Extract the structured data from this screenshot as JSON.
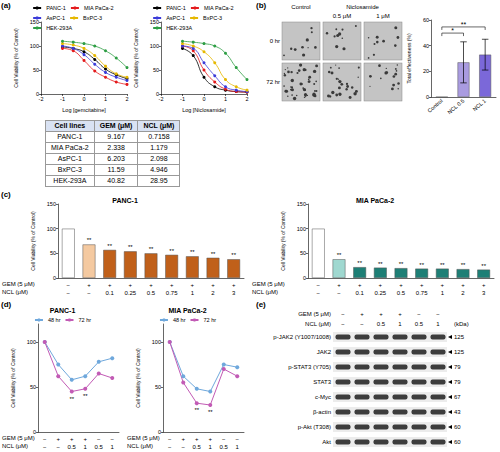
{
  "panel_labels": [
    "(a)",
    "(b)",
    "(c)",
    "(d)",
    "(e)"
  ],
  "chart_data": [
    {
      "type": "line",
      "x_label": "Log [gemcitabine]",
      "y_label": "Cell Viability (% of Control)",
      "x": [
        -1,
        -0.5,
        0,
        0.5,
        1,
        1.5,
        2
      ],
      "series": [
        {
          "name": "PANC-1",
          "color": "#000000",
          "values": [
            98,
            95,
            88,
            72,
            52,
            40,
            32
          ]
        },
        {
          "name": "MIA PaCa-2",
          "color": "#e41a1c",
          "values": [
            95,
            90,
            70,
            48,
            35,
            25,
            20
          ]
        },
        {
          "name": "AsPC-1",
          "color": "#3b3bd9",
          "values": [
            100,
            95,
            82,
            62,
            45,
            35,
            28
          ]
        },
        {
          "name": "BxPC-3",
          "color": "#e6b800",
          "values": [
            105,
            102,
            95,
            80,
            58,
            42,
            35
          ]
        },
        {
          "name": "HEK-293A",
          "color": "#2e9e44",
          "values": [
            110,
            108,
            105,
            100,
            90,
            75,
            55
          ]
        }
      ],
      "xlim": [
        -2,
        2
      ],
      "xticks": [
        -2,
        -1,
        0,
        1,
        2
      ],
      "ylim": [
        0,
        150
      ],
      "yticks": [
        0,
        50,
        100,
        150
      ],
      "marker": "circle",
      "line_style": "solid",
      "legend": "top",
      "grid": false
    },
    {
      "type": "line",
      "x_label": "Log [Niclosamide]",
      "y_label": "Cell Viability (% of Control)",
      "x": [
        -1,
        -0.5,
        0,
        0.5,
        1,
        1.5,
        2
      ],
      "series": [
        {
          "name": "PANC-1",
          "color": "#000000",
          "values": [
            95,
            80,
            35,
            15,
            8,
            5,
            4
          ]
        },
        {
          "name": "MIA PaCa-2",
          "color": "#e41a1c",
          "values": [
            100,
            90,
            50,
            25,
            10,
            5,
            4
          ]
        },
        {
          "name": "AsPC-1",
          "color": "#3b3bd9",
          "values": [
            100,
            95,
            65,
            38,
            15,
            8,
            5
          ]
        },
        {
          "name": "BxPC-3",
          "color": "#e6b800",
          "values": [
            105,
            100,
            88,
            65,
            30,
            15,
            8
          ]
        },
        {
          "name": "HEK-293A",
          "color": "#2e9e44",
          "values": [
            110,
            108,
            105,
            100,
            85,
            55,
            30
          ]
        }
      ],
      "xlim": [
        -2,
        2
      ],
      "xticks": [
        -2,
        -1,
        0,
        1,
        2
      ],
      "ylim": [
        0,
        150
      ],
      "yticks": [
        0,
        50,
        100,
        150
      ],
      "marker": "circle",
      "line_style": "solid",
      "legend": "top",
      "grid": false
    },
    {
      "type": "bar",
      "y_label": "Total effectiveness (%)",
      "categories": [
        "Control",
        "NCL 0.5",
        "NCL 1"
      ],
      "values": [
        0,
        27,
        33
      ],
      "errors": [
        0,
        16,
        12
      ],
      "colors": [
        "#d9d9f3",
        "#a99be0",
        "#7b68d9"
      ],
      "significance": [
        {
          "text": "*",
          "from": 0,
          "to": 1
        },
        {
          "text": "**",
          "from": 0,
          "to": 2
        }
      ],
      "ylim": [
        0,
        60
      ],
      "yticks": [
        0,
        20,
        40,
        60
      ],
      "grid": false
    },
    {
      "type": "bar",
      "title": "PANC-1",
      "y_label": "Cell Viability (% of Control)",
      "x_rows": [
        {
          "label": "GEM (5 μM)",
          "values": [
            "−",
            "+",
            "+",
            "+",
            "+",
            "+",
            "+",
            "+",
            "+"
          ]
        },
        {
          "label": "NCL (μM)",
          "values": [
            "−",
            "−",
            "0.1",
            "0.25",
            "0.5",
            "0.75",
            "1",
            "2",
            "3"
          ]
        }
      ],
      "values": [
        100,
        68,
        57,
        54,
        50,
        47,
        44,
        41,
        38
      ],
      "colors": [
        "#ffffff",
        "#f4c9a0",
        "#c0601a",
        "#c0601a",
        "#c0601a",
        "#c0601a",
        "#c0601a",
        "#c0601a",
        "#c0601a"
      ],
      "marks": [
        null,
        "**",
        "**",
        "**",
        "**",
        "**",
        "**",
        "**",
        "**"
      ],
      "ylim": [
        0,
        150
      ],
      "yticks": [
        0,
        50,
        100,
        150
      ],
      "grid": false
    },
    {
      "type": "bar",
      "title": "MIA PaCa-2",
      "y_label": "Cell Viability (% of Control)",
      "x_rows": [
        {
          "label": "GEM (5 μM)",
          "values": [
            "−",
            "+",
            "+",
            "+",
            "+",
            "+",
            "+",
            "+",
            "+"
          ]
        },
        {
          "label": "NCL (μM)",
          "values": [
            "−",
            "−",
            "0.1",
            "0.25",
            "0.5",
            "0.75",
            "1",
            "2",
            "3"
          ]
        }
      ],
      "values": [
        100,
        38,
        22,
        21,
        20,
        19,
        19,
        18,
        17
      ],
      "colors": [
        "#ffffff",
        "#9fd8d0",
        "#1e7f76",
        "#1e7f76",
        "#1e7f76",
        "#1e7f76",
        "#1e7f76",
        "#1e7f76",
        "#1e7f76"
      ],
      "marks": [
        null,
        "**",
        "**",
        "**",
        "**",
        "**",
        "**",
        "**",
        "**"
      ],
      "ylim": [
        0,
        150
      ],
      "yticks": [
        0,
        50,
        100,
        150
      ],
      "grid": false
    },
    {
      "type": "line",
      "title": "PANC-1",
      "y_label": "Cell Viability (% of Control)",
      "x_rows": [
        {
          "label": "GEM (5 μM)",
          "values": [
            "−",
            "+",
            "+",
            "+",
            "−",
            "−"
          ]
        },
        {
          "label": "NCL (μM)",
          "values": [
            "−",
            "−",
            "0.5",
            "1",
            "0.5",
            "1"
          ]
        }
      ],
      "series": [
        {
          "name": "48 hr",
          "color": "#6fa8dc",
          "values": [
            100,
            75,
            58,
            62,
            78,
            82
          ]
        },
        {
          "name": "72 hr",
          "color": "#c25bb5",
          "values": [
            100,
            62,
            45,
            48,
            65,
            60
          ],
          "marks": [
            null,
            null,
            "**",
            "**",
            null,
            null
          ]
        }
      ],
      "ylim": [
        0,
        120
      ],
      "yticks": [
        0,
        50,
        100
      ],
      "marker": "circle",
      "line_style": "solid",
      "legend": "top",
      "grid": false
    },
    {
      "type": "line",
      "title": "MIA PaCa-2",
      "y_label": "Cell Viability (% of Control)",
      "x_rows": [
        {
          "label": "GEM (5 μM)",
          "values": [
            "−",
            "+",
            "+",
            "+",
            "−",
            "−"
          ]
        },
        {
          "label": "NCL (μM)",
          "values": [
            "−",
            "−",
            "0.5",
            "1",
            "0.5",
            "1"
          ]
        }
      ],
      "series": [
        {
          "name": "48 hr",
          "color": "#6fa8dc",
          "values": [
            100,
            62,
            48,
            45,
            75,
            72
          ]
        },
        {
          "name": "72 hr",
          "color": "#c25bb5",
          "values": [
            100,
            55,
            32,
            30,
            70,
            62
          ],
          "marks": [
            null,
            null,
            "**",
            "**",
            null,
            null
          ]
        }
      ],
      "ylim": [
        0,
        120
      ],
      "yticks": [
        0,
        50,
        100
      ],
      "marker": "circle",
      "line_style": "solid",
      "legend": "top",
      "grid": false
    }
  ],
  "table": {
    "header": [
      "Cell lines",
      "GEM (μM)",
      "NCL (μM)"
    ],
    "rows": [
      [
        "PANC-1",
        9.167,
        0.7158
      ],
      [
        "MIA PaCa-2",
        2.338,
        1.179
      ],
      [
        "AsPC-1",
        6.203,
        2.098
      ],
      [
        "BxPC-3",
        11.59,
        4.946
      ],
      [
        "HEK-293A",
        40.82,
        28.95
      ]
    ]
  },
  "images": {
    "headers": [
      "Control",
      "Niclosamide"
    ],
    "subheaders": [
      "0.5 μM",
      "1 μM"
    ],
    "rows": [
      "0 hr",
      "72 hr"
    ]
  },
  "blot": {
    "conditions": [
      {
        "label": "GEM (5 μM)",
        "values": [
          "−",
          "+",
          "+",
          "+",
          "−",
          "−"
        ]
      },
      {
        "label": "NCL (μM)",
        "values": [
          "−",
          "−",
          "0.5",
          "1",
          "0.5",
          "1"
        ]
      }
    ],
    "size_label": "(kDa)",
    "rows": [
      {
        "label": "p-JAK2 (Y1007/1008)",
        "kDa": 125
      },
      {
        "label": "JAK2",
        "kDa": 125
      },
      {
        "label": "p-STAT3 (Y705)",
        "kDa": 79
      },
      {
        "label": "STAT3",
        "kDa": 79
      },
      {
        "label": "c-Myc",
        "kDa": 67
      },
      {
        "label": "β-actin",
        "kDa": 43
      },
      {
        "label": "p-Akt (T308)",
        "kDa": 60
      },
      {
        "label": "Akt",
        "kDa": 60
      }
    ]
  }
}
